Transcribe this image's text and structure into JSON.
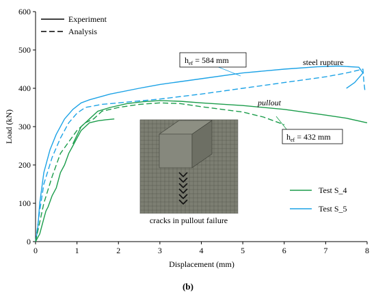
{
  "chart_data": {
    "type": "line",
    "xlabel": "Displacement (mm)",
    "ylabel": "Load (kN)",
    "xlim": [
      0,
      8
    ],
    "ylim": [
      0,
      600
    ],
    "x_ticks": [
      "0",
      "1",
      "2",
      "3",
      "4",
      "5",
      "6",
      "7",
      "8"
    ],
    "y_ticks": [
      "0",
      "100",
      "200",
      "300",
      "400",
      "500",
      "600"
    ],
    "grid": false,
    "style_legend": [
      {
        "label": "Experiment",
        "dash": "solid"
      },
      {
        "label": "Analysis",
        "dash": "dashed"
      }
    ],
    "color_legend": [
      {
        "label": "Test S_4",
        "color": "#1a9c4a"
      },
      {
        "label": "Test S_5",
        "color": "#1ba2e6"
      }
    ],
    "series": [
      {
        "name": "Test S_5",
        "kind": "experiment",
        "color": "#1ba2e6",
        "dashed": false,
        "x": [
          0,
          0.05,
          0.1,
          0.2,
          0.35,
          0.5,
          0.7,
          0.9,
          1.1,
          1.3,
          1.8,
          2.5,
          3.0,
          4.0,
          5.0,
          6.0,
          6.8,
          7.3,
          7.8,
          7.9,
          7.7,
          7.5
        ],
        "y": [
          0,
          30,
          100,
          180,
          240,
          280,
          320,
          345,
          362,
          370,
          385,
          400,
          410,
          425,
          440,
          450,
          456,
          458,
          455,
          440,
          415,
          400
        ]
      },
      {
        "name": "Test S_5",
        "kind": "analysis",
        "color": "#1ba2e6",
        "dashed": true,
        "x": [
          0,
          0.1,
          0.2,
          0.4,
          0.6,
          0.8,
          1.0,
          1.2,
          1.6,
          2.0,
          3.0,
          4.0,
          5.0,
          6.0,
          7.0,
          7.5,
          7.9,
          7.92,
          7.95
        ],
        "y": [
          0,
          80,
          150,
          220,
          270,
          310,
          335,
          350,
          358,
          362,
          372,
          385,
          400,
          415,
          430,
          440,
          450,
          420,
          390
        ]
      },
      {
        "name": "Test S_4",
        "kind": "experiment",
        "color": "#1a9c4a",
        "dashed": false,
        "x": [
          0,
          0.05,
          0.1,
          0.15,
          0.2,
          0.25,
          0.3,
          0.4,
          0.5,
          0.6,
          0.7,
          0.8,
          0.9,
          1.0,
          1.1,
          1.2,
          1.3,
          1.5,
          1.7,
          1.9
        ],
        "y": [
          0,
          10,
          20,
          40,
          60,
          80,
          90,
          120,
          140,
          180,
          200,
          230,
          250,
          270,
          290,
          300,
          310,
          315,
          318,
          320
        ]
      },
      {
        "name": "Test S_4",
        "kind": "experiment",
        "color": "#1a9c4a",
        "dashed": false,
        "x": [
          0.9,
          1.1,
          1.3,
          1.5,
          1.8,
          2.2,
          2.6,
          3.0,
          3.5,
          4.0,
          5.0,
          6.0,
          7.0,
          7.5,
          8.0
        ],
        "y": [
          255,
          300,
          320,
          340,
          350,
          360,
          365,
          368,
          366,
          362,
          355,
          345,
          330,
          322,
          310
        ]
      },
      {
        "name": "Test S_4",
        "kind": "analysis",
        "color": "#1a9c4a",
        "dashed": true,
        "x": [
          0,
          0.2,
          0.4,
          0.6,
          0.8,
          1.0,
          1.2,
          1.4,
          1.6,
          2.0,
          2.5,
          3.0,
          3.5,
          4.0,
          4.5,
          5.0,
          5.5,
          6.0
        ],
        "y": [
          0,
          100,
          170,
          230,
          260,
          290,
          310,
          320,
          340,
          350,
          358,
          362,
          360,
          352,
          345,
          338,
          325,
          305
        ]
      }
    ],
    "annotations": {
      "hef_584_label": "h",
      "hef_584_sub": "ef",
      "hef_584_rest": " = 584 mm",
      "hef_432_label": "h",
      "hef_432_sub": "ef",
      "hef_432_rest": " = 432 mm",
      "steel_rupture": "steel rupture",
      "pullout": "pullout",
      "inset_caption": "cracks in pullout failure"
    },
    "panel_label": "(b)"
  }
}
